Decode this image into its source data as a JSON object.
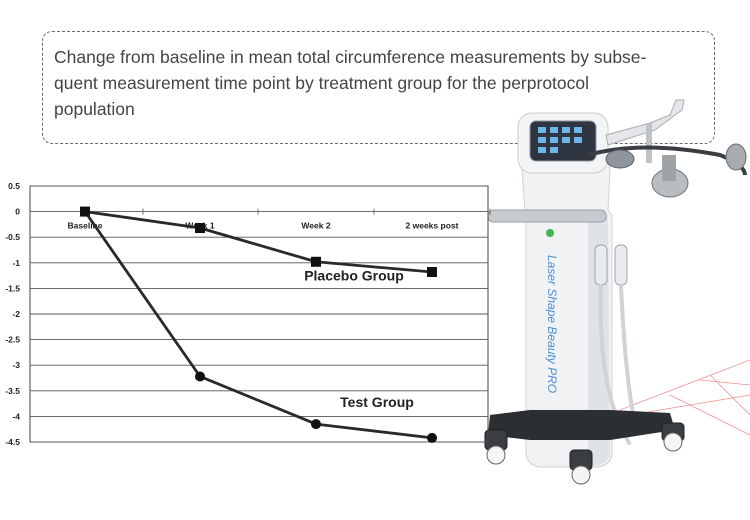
{
  "caption": {
    "line1": "Change from baseline in mean total circumference measurements by subse-",
    "line2": "quent measurement time point by treatment group for the perprotocol",
    "line3": "population"
  },
  "chart_data": {
    "type": "line",
    "categories": [
      "Baseline",
      "Week 1",
      "Week 2",
      "2 weeks post"
    ],
    "series": [
      {
        "name": "Placebo  Group",
        "values": [
          0,
          -0.32,
          -0.98,
          -1.18
        ],
        "marker": "square",
        "color": "#2a2a2a"
      },
      {
        "name": "Test Group",
        "values": [
          0,
          -3.22,
          -4.15,
          -4.42
        ],
        "marker": "circle",
        "color": "#2a2a2a"
      }
    ],
    "yticks": [
      "0.5",
      "0",
      "-0.5",
      "-1",
      "-1.5",
      "-2",
      "-2.5",
      "-3",
      "-3.5",
      "-4",
      "-4.5"
    ],
    "ylim": [
      -4.5,
      0.5
    ],
    "grid": true,
    "title": "",
    "xlabel": "",
    "ylabel": ""
  },
  "device": {
    "label": "Laser Shape Beauty PRO",
    "accent": "#4a8fd4"
  }
}
